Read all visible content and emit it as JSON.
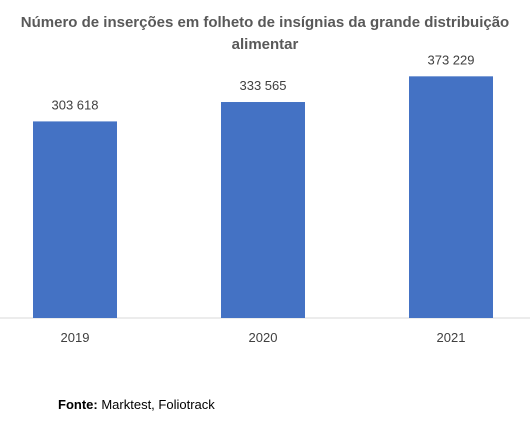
{
  "chart_data": {
    "type": "bar",
    "title": "Número de inserções em folheto de insígnias da grande distribuição alimentar",
    "categories": [
      "2019",
      "2020",
      "2021"
    ],
    "values": [
      303618,
      333565,
      373229
    ],
    "value_labels": [
      "303 618",
      "333 565",
      "373 229"
    ],
    "ylim": [
      0,
      400000
    ],
    "xlabel": "",
    "ylabel": "",
    "grid": false,
    "legend": "none",
    "bar_color": "#4472C4",
    "axis_line_color": "#D9D9D9"
  },
  "source": {
    "label": "Fonte:",
    "text": "Marktest, Foliotrack"
  }
}
